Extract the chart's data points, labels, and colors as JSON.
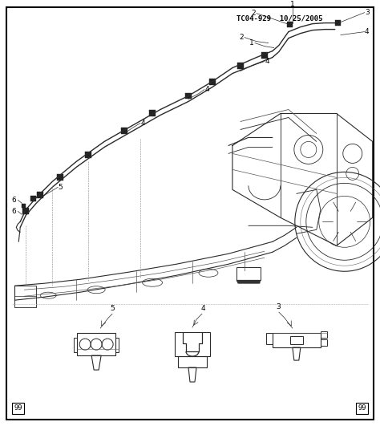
{
  "title_text": "TC04-929  10/25/2005",
  "background_color": "#ffffff",
  "line_color": "#2a2a2a",
  "border_color": "#000000",
  "page_num": "99",
  "figsize": [
    4.74,
    5.31
  ],
  "dpi": 100
}
